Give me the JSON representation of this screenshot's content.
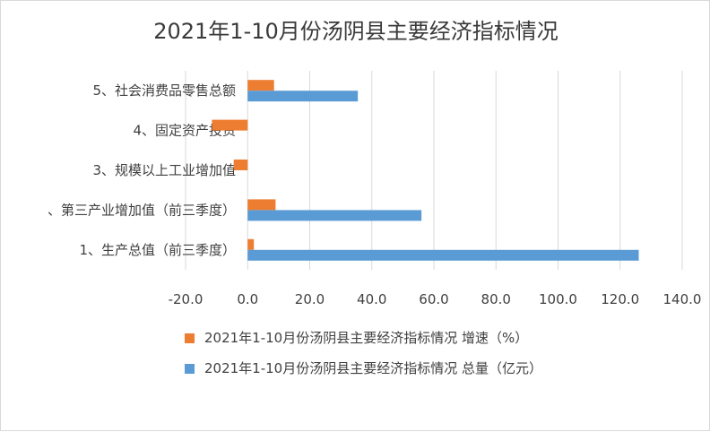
{
  "chart_data": {
    "type": "bar",
    "orientation": "horizontal",
    "title": "2021年1-10月份汤阴县主要经济指标情况",
    "categories": [
      "1、生产总值（前三季度）",
      "、第三产业增加值（前三季度）",
      "3、规模以上工业增加值",
      "4、固定资产投资",
      "5、社会消费品零售总额"
    ],
    "series": [
      {
        "name": "2021年1-10月份汤阴县主要经济指标情况 增速（%）",
        "color": "#ed7d31",
        "values": [
          2.0,
          9.0,
          -4.5,
          -11.5,
          8.5
        ]
      },
      {
        "name": "2021年1-10月份汤阴县主要经济指标情况 总量（亿元）",
        "color": "#5b9bd5",
        "values": [
          126.0,
          56.0,
          null,
          null,
          35.5
        ]
      }
    ],
    "xlim": [
      -20,
      140
    ],
    "xticks": [
      "-20.0",
      "0.0",
      "20.0",
      "40.0",
      "60.0",
      "80.0",
      "100.0",
      "120.0",
      "140.0"
    ],
    "grid": true,
    "legend_position": "bottom"
  }
}
